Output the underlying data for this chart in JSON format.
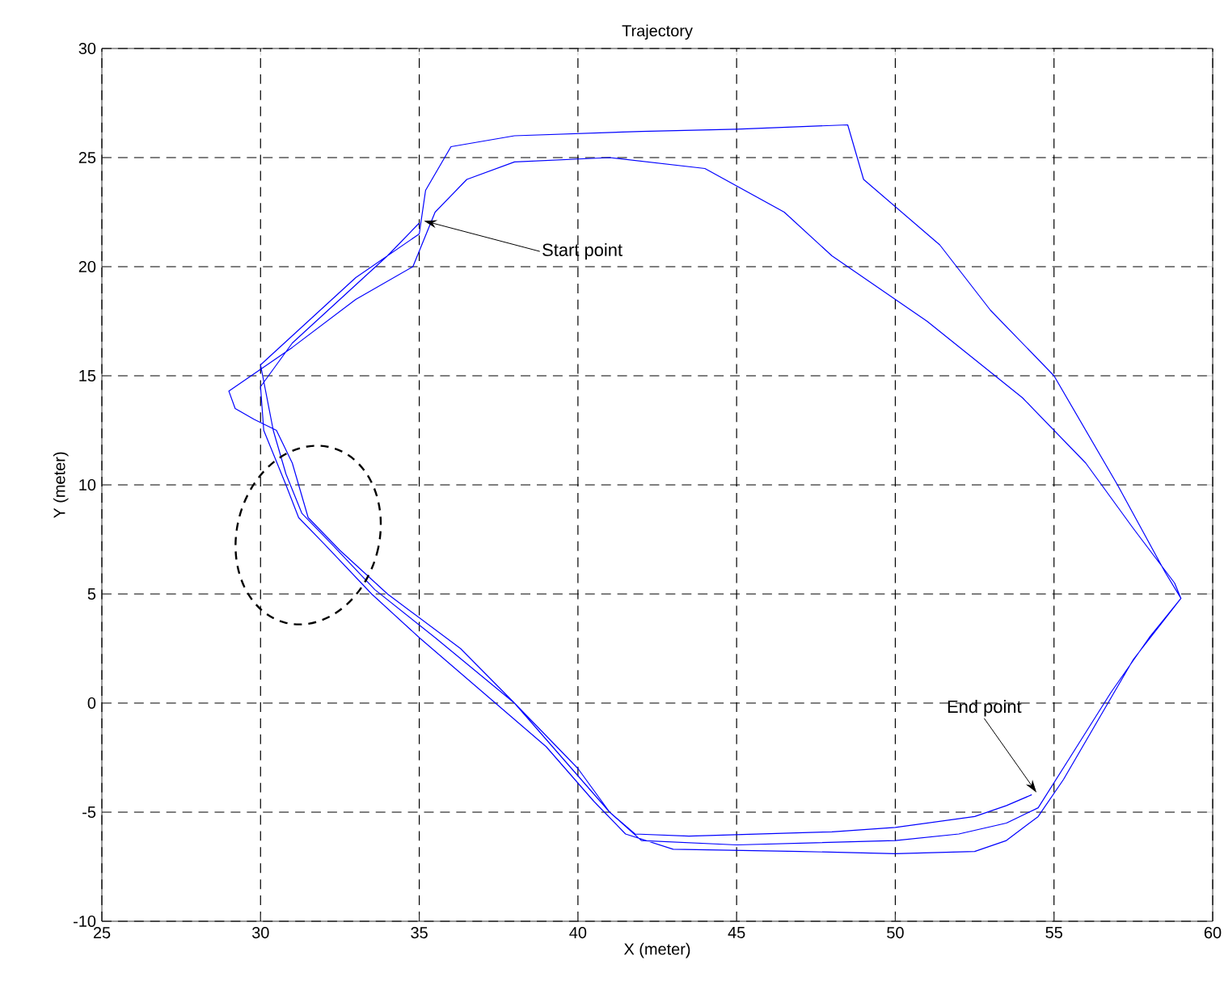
{
  "chart_data": {
    "type": "line",
    "title": "Trajectory",
    "xlabel": "X (meter)",
    "ylabel": "Y (meter)",
    "series": [
      {
        "color": "#0000ff",
        "x": [
          35,
          34,
          32.5,
          31,
          30,
          30.1,
          30.8,
          31.2,
          32,
          33.5,
          35,
          37,
          39,
          40.5,
          41.5,
          43,
          47,
          50,
          52.5,
          53.5,
          54.5,
          55.3,
          56.5,
          57.5,
          59,
          58.8,
          57.5,
          56,
          54,
          51,
          48,
          46.5,
          44,
          41,
          38,
          36.5,
          35.5,
          34.8,
          33,
          31,
          29,
          29.2,
          29.8,
          30.5,
          31,
          31.5,
          32.5,
          34,
          36.3,
          38,
          40,
          41,
          42,
          45,
          50,
          52,
          53.5,
          54.5,
          55.5,
          56.8,
          58,
          59,
          58.5,
          57,
          55,
          53,
          51.4,
          49,
          48.5,
          45,
          42,
          38,
          36,
          35.2,
          35,
          33,
          31.5,
          30,
          30.2,
          30.4,
          30.8,
          31.3,
          32.3,
          33.6,
          35.5,
          38,
          39.5,
          41,
          41.8,
          43.5,
          48,
          50,
          52.5,
          53.5,
          54.3
        ],
        "values": [
          22,
          20.5,
          18.5,
          16.5,
          14.5,
          12.5,
          10,
          8.5,
          7.3,
          5,
          3,
          0.5,
          -2,
          -4.5,
          -6,
          -6.7,
          -6.8,
          -6.9,
          -6.8,
          -6.3,
          -5.2,
          -3.5,
          -0.5,
          2,
          4.8,
          5.5,
          8,
          11,
          14,
          17.5,
          20.5,
          22.5,
          24.5,
          25,
          24.8,
          24,
          22.5,
          20,
          18.5,
          16.3,
          14.3,
          13.5,
          13,
          12.5,
          11,
          8.5,
          7,
          5,
          2.5,
          0,
          -3,
          -5,
          -6.3,
          -6.5,
          -6.3,
          -6,
          -5.5,
          -4.8,
          -2.5,
          0.5,
          3,
          4.8,
          6,
          10,
          15,
          18,
          21,
          24,
          26.5,
          26.3,
          26.2,
          26,
          25.5,
          23.5,
          21.5,
          19.5,
          17.5,
          15.5,
          14,
          12.5,
          10.5,
          8.7,
          7.2,
          5.2,
          3,
          0,
          -2.5,
          -5,
          -6,
          -6.1,
          -5.9,
          -5.7,
          -5.2,
          -4.7,
          -4.2
        ]
      }
    ],
    "xlim": [
      25,
      60
    ],
    "xticks": [
      25,
      30,
      35,
      40,
      45,
      50,
      55,
      60
    ],
    "ylim": [
      -10,
      30
    ],
    "yticks": [
      -10,
      -5,
      0,
      5,
      10,
      15,
      20,
      25,
      30
    ],
    "grid": true,
    "marker": "none",
    "line_style": "solid",
    "annotations": [
      {
        "text": "Start point",
        "x": 35,
        "y": 22
      },
      {
        "text": "End point",
        "x": 54.3,
        "y": -4.2
      }
    ]
  }
}
